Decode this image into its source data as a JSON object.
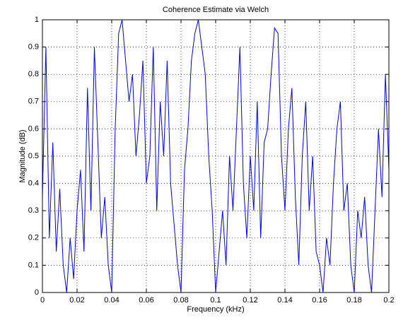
{
  "chart_data": {
    "type": "line",
    "title": "Coherence Estimate via Welch",
    "x_label": "Frequency (kHz)",
    "y_label": "Magnitude (dB)",
    "color": "#0000ff",
    "grid": true,
    "xlim": [
      0,
      0.2
    ],
    "ylim": [
      0,
      1
    ],
    "xticks": [
      0,
      0.02,
      0.04,
      0.06,
      0.08,
      0.1,
      0.12,
      0.14,
      0.16,
      0.18,
      0.2
    ],
    "yticks": [
      0,
      0.1,
      0.2,
      0.3,
      0.4,
      0.5,
      0.6,
      0.7,
      0.8,
      0.9,
      1
    ],
    "x": [
      0,
      0.002,
      0.004,
      0.006,
      0.008,
      0.01,
      0.012,
      0.014,
      0.016,
      0.018,
      0.02,
      0.022,
      0.024,
      0.026,
      0.028,
      0.03,
      0.032,
      0.034,
      0.036,
      0.038,
      0.04,
      0.042,
      0.044,
      0.046,
      0.048,
      0.05,
      0.052,
      0.054,
      0.056,
      0.058,
      0.06,
      0.062,
      0.064,
      0.066,
      0.068,
      0.07,
      0.072,
      0.074,
      0.076,
      0.078,
      0.08,
      0.082,
      0.084,
      0.086,
      0.088,
      0.09,
      0.092,
      0.094,
      0.096,
      0.098,
      0.1,
      0.102,
      0.104,
      0.106,
      0.108,
      0.11,
      0.112,
      0.114,
      0.116,
      0.118,
      0.12,
      0.122,
      0.124,
      0.126,
      0.128,
      0.13,
      0.132,
      0.134,
      0.136,
      0.138,
      0.14,
      0.142,
      0.144,
      0.146,
      0.148,
      0.15,
      0.152,
      0.154,
      0.156,
      0.158,
      0.16,
      0.162,
      0.164,
      0.166,
      0.168,
      0.17,
      0.172,
      0.174,
      0.176,
      0.178,
      0.18,
      0.182,
      0.184,
      0.186,
      0.188,
      0.19,
      0.192,
      0.194,
      0.196,
      0.198,
      0.2
    ],
    "values": [
      0.35,
      0.9,
      0.2,
      0.55,
      0.15,
      0.38,
      0.1,
      0.0,
      0.2,
      0.05,
      0.3,
      0.45,
      0.15,
      0.75,
      0.3,
      0.9,
      0.55,
      0.2,
      0.35,
      0.1,
      0.0,
      0.6,
      0.95,
      1.0,
      0.85,
      0.7,
      0.8,
      0.5,
      0.65,
      0.85,
      0.4,
      0.5,
      0.9,
      0.3,
      0.7,
      0.5,
      0.85,
      0.4,
      0.25,
      0.1,
      0.0,
      0.45,
      0.6,
      0.85,
      0.95,
      1.0,
      0.9,
      0.8,
      0.5,
      0.3,
      0.0,
      0.15,
      0.3,
      0.1,
      0.5,
      0.3,
      0.6,
      0.9,
      0.4,
      0.2,
      0.5,
      0.3,
      0.7,
      0.2,
      0.55,
      0.6,
      0.8,
      0.97,
      0.95,
      0.5,
      0.3,
      0.6,
      0.75,
      0.35,
      0.1,
      0.5,
      0.7,
      0.3,
      0.5,
      0.15,
      0.1,
      0.0,
      0.2,
      0.1,
      0.4,
      0.6,
      0.7,
      0.3,
      0.4,
      0.1,
      0.0,
      0.3,
      0.2,
      0.35,
      0.1,
      0.0,
      0.3,
      0.6,
      0.35,
      0.8,
      0.45
    ]
  }
}
